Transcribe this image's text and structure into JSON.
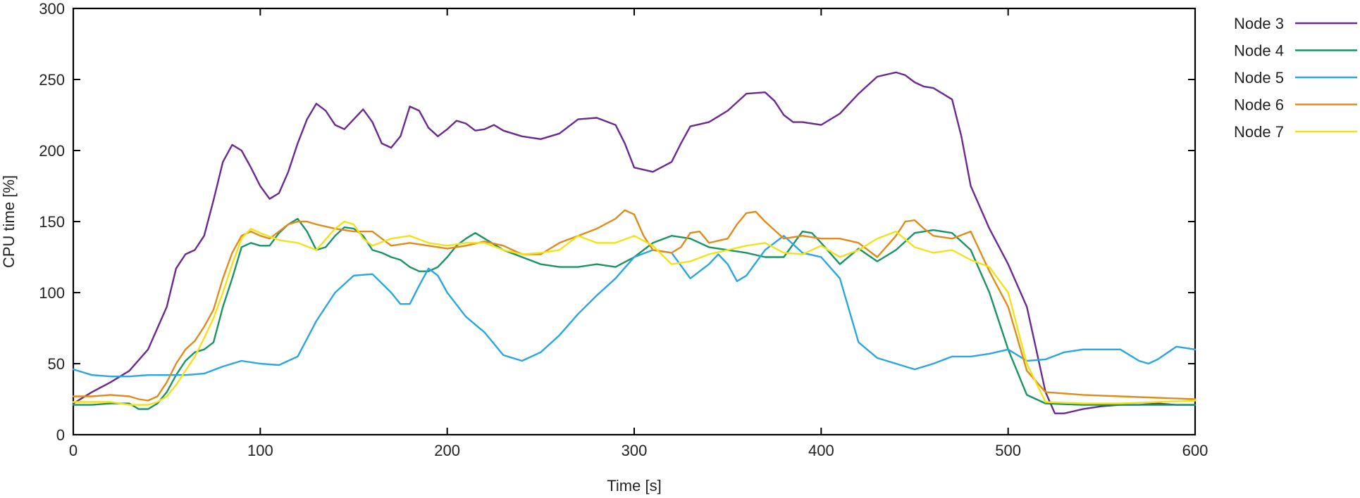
{
  "chart_data": {
    "type": "line",
    "title": "",
    "xlabel": "Time [s]",
    "ylabel": "CPU time [%]",
    "xlim": [
      0,
      600
    ],
    "ylim": [
      0,
      300
    ],
    "x_ticks": [
      "0",
      "100",
      "200",
      "300",
      "400",
      "500",
      "600"
    ],
    "y_ticks": [
      "0",
      "50",
      "100",
      "150",
      "200",
      "250",
      "300"
    ],
    "grid": false,
    "legend_position": "outside-right",
    "series": [
      {
        "name": "Node 3",
        "color": "#6b2a8f",
        "x": [
          0,
          10,
          20,
          30,
          40,
          45,
          50,
          55,
          60,
          65,
          70,
          75,
          80,
          85,
          90,
          95,
          100,
          105,
          110,
          115,
          120,
          125,
          130,
          135,
          140,
          145,
          150,
          155,
          160,
          165,
          170,
          175,
          180,
          185,
          190,
          195,
          200,
          205,
          210,
          215,
          220,
          225,
          230,
          240,
          250,
          260,
          270,
          280,
          290,
          295,
          300,
          310,
          320,
          325,
          330,
          340,
          350,
          360,
          370,
          375,
          380,
          385,
          390,
          400,
          410,
          420,
          430,
          440,
          445,
          450,
          455,
          460,
          470,
          475,
          480,
          490,
          500,
          510,
          515,
          520,
          525,
          530,
          540,
          550,
          560,
          570,
          580,
          590,
          600
        ],
        "y": [
          22,
          30,
          37,
          45,
          60,
          75,
          90,
          117,
          127,
          130,
          140,
          165,
          192,
          204,
          200,
          188,
          175,
          166,
          170,
          185,
          205,
          222,
          233,
          228,
          218,
          215,
          222,
          229,
          220,
          205,
          202,
          210,
          231,
          228,
          216,
          210,
          215,
          221,
          219,
          214,
          215,
          218,
          214,
          210,
          208,
          212,
          222,
          223,
          218,
          205,
          188,
          185,
          192,
          205,
          217,
          220,
          228,
          240,
          241,
          235,
          225,
          220,
          220,
          218,
          226,
          240,
          252,
          255,
          253,
          248,
          245,
          244,
          236,
          210,
          175,
          145,
          120,
          90,
          60,
          30,
          15,
          15,
          18,
          20,
          21,
          21,
          22,
          21,
          21
        ]
      },
      {
        "name": "Node 4",
        "color": "#1a9463",
        "x": [
          0,
          10,
          20,
          30,
          35,
          40,
          45,
          50,
          55,
          60,
          65,
          70,
          75,
          80,
          85,
          90,
          95,
          100,
          105,
          110,
          115,
          120,
          125,
          130,
          135,
          140,
          145,
          150,
          155,
          160,
          165,
          170,
          175,
          180,
          185,
          190,
          195,
          200,
          205,
          210,
          215,
          220,
          230,
          240,
          250,
          260,
          270,
          280,
          290,
          300,
          310,
          320,
          330,
          340,
          350,
          360,
          370,
          380,
          390,
          395,
          400,
          410,
          420,
          430,
          440,
          450,
          460,
          470,
          480,
          490,
          500,
          510,
          520,
          540,
          560,
          580,
          600
        ],
        "y": [
          21,
          21,
          22,
          22,
          18,
          18,
          22,
          30,
          42,
          52,
          58,
          60,
          65,
          90,
          110,
          132,
          135,
          133,
          133,
          142,
          148,
          152,
          143,
          130,
          132,
          140,
          146,
          145,
          140,
          130,
          128,
          125,
          123,
          118,
          115,
          115,
          118,
          125,
          133,
          138,
          142,
          138,
          130,
          125,
          120,
          118,
          118,
          120,
          118,
          125,
          135,
          140,
          138,
          132,
          130,
          128,
          125,
          125,
          143,
          142,
          135,
          120,
          131,
          122,
          130,
          142,
          144,
          142,
          130,
          100,
          60,
          28,
          22,
          21,
          21,
          21,
          21
        ]
      },
      {
        "name": "Node 5",
        "color": "#2aa6e0",
        "x": [
          0,
          10,
          20,
          30,
          40,
          50,
          60,
          70,
          80,
          90,
          100,
          110,
          120,
          130,
          140,
          150,
          160,
          170,
          175,
          180,
          185,
          190,
          195,
          200,
          210,
          220,
          230,
          240,
          250,
          260,
          270,
          280,
          290,
          300,
          310,
          320,
          330,
          340,
          345,
          350,
          355,
          360,
          370,
          380,
          390,
          400,
          410,
          420,
          430,
          440,
          450,
          460,
          470,
          480,
          490,
          500,
          510,
          520,
          530,
          540,
          550,
          560,
          570,
          575,
          580,
          590,
          600
        ],
        "y": [
          46,
          42,
          41,
          41,
          42,
          42,
          42,
          43,
          48,
          52,
          50,
          49,
          55,
          80,
          100,
          112,
          113,
          100,
          92,
          92,
          105,
          117,
          112,
          100,
          83,
          72,
          56,
          52,
          58,
          70,
          85,
          98,
          110,
          125,
          130,
          128,
          110,
          120,
          127,
          120,
          108,
          112,
          130,
          140,
          128,
          125,
          110,
          65,
          54,
          50,
          46,
          50,
          55,
          55,
          57,
          60,
          52,
          53,
          58,
          60,
          60,
          60,
          52,
          50,
          53,
          62,
          60
        ]
      },
      {
        "name": "Node 6",
        "color": "#e08c1a",
        "x": [
          0,
          10,
          20,
          30,
          35,
          40,
          45,
          50,
          55,
          60,
          65,
          70,
          75,
          80,
          85,
          90,
          95,
          100,
          105,
          110,
          115,
          120,
          125,
          130,
          140,
          150,
          160,
          170,
          180,
          190,
          200,
          210,
          220,
          230,
          240,
          250,
          260,
          270,
          280,
          290,
          295,
          300,
          305,
          310,
          320,
          325,
          330,
          335,
          340,
          350,
          355,
          360,
          365,
          370,
          380,
          390,
          400,
          410,
          420,
          430,
          440,
          445,
          450,
          455,
          460,
          470,
          480,
          490,
          500,
          510,
          520,
          540,
          560,
          580,
          600
        ],
        "y": [
          27,
          27,
          28,
          27,
          25,
          24,
          27,
          37,
          50,
          60,
          66,
          76,
          88,
          110,
          128,
          140,
          143,
          140,
          138,
          143,
          148,
          150,
          150,
          148,
          145,
          143,
          143,
          133,
          135,
          133,
          131,
          133,
          136,
          133,
          127,
          127,
          135,
          140,
          145,
          152,
          158,
          155,
          140,
          130,
          128,
          132,
          142,
          143,
          135,
          138,
          148,
          156,
          157,
          150,
          138,
          140,
          138,
          138,
          135,
          125,
          140,
          150,
          151,
          145,
          140,
          138,
          143,
          115,
          90,
          45,
          30,
          28,
          27,
          26,
          25
        ]
      },
      {
        "name": "Node 7",
        "color": "#f2e219",
        "x": [
          0,
          10,
          20,
          30,
          40,
          45,
          50,
          55,
          60,
          65,
          70,
          75,
          80,
          85,
          90,
          95,
          100,
          110,
          120,
          130,
          140,
          145,
          150,
          155,
          160,
          170,
          180,
          190,
          200,
          210,
          220,
          230,
          240,
          250,
          260,
          270,
          280,
          290,
          300,
          310,
          320,
          330,
          340,
          350,
          360,
          370,
          380,
          390,
          400,
          410,
          420,
          430,
          440,
          450,
          460,
          470,
          480,
          490,
          500,
          510,
          520,
          540,
          560,
          580,
          600
        ],
        "y": [
          23,
          23,
          23,
          21,
          21,
          23,
          27,
          35,
          45,
          55,
          68,
          82,
          100,
          120,
          138,
          145,
          142,
          137,
          135,
          130,
          145,
          150,
          148,
          138,
          133,
          138,
          140,
          135,
          133,
          135,
          135,
          130,
          127,
          128,
          130,
          140,
          135,
          135,
          140,
          133,
          120,
          122,
          127,
          130,
          133,
          135,
          128,
          127,
          133,
          125,
          130,
          138,
          143,
          132,
          128,
          130,
          123,
          118,
          100,
          50,
          23,
          22,
          22,
          23,
          24
        ]
      }
    ]
  }
}
